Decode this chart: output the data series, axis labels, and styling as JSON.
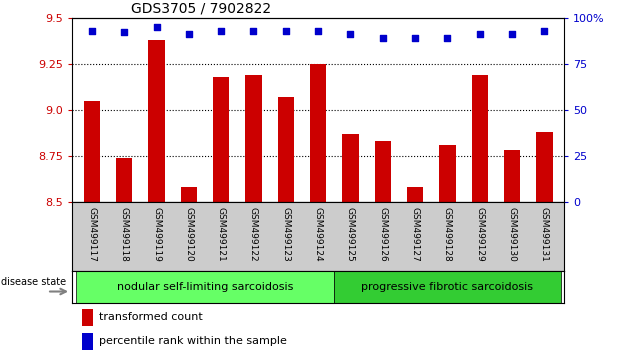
{
  "title": "GDS3705 / 7902822",
  "categories": [
    "GSM499117",
    "GSM499118",
    "GSM499119",
    "GSM499120",
    "GSM499121",
    "GSM499122",
    "GSM499123",
    "GSM499124",
    "GSM499125",
    "GSM499126",
    "GSM499127",
    "GSM499128",
    "GSM499129",
    "GSM499130",
    "GSM499131"
  ],
  "bar_values": [
    9.05,
    8.74,
    9.38,
    8.58,
    9.18,
    9.19,
    9.07,
    9.25,
    8.87,
    8.83,
    8.58,
    8.81,
    9.19,
    8.78,
    8.88
  ],
  "percentile_values": [
    93,
    92,
    95,
    91,
    93,
    93,
    93,
    93,
    91,
    89,
    89,
    89,
    91,
    91,
    93
  ],
  "bar_color": "#cc0000",
  "percentile_color": "#0000cc",
  "ylim": [
    8.5,
    9.5
  ],
  "y2lim": [
    0,
    100
  ],
  "yticks": [
    8.5,
    8.75,
    9.0,
    9.25,
    9.5
  ],
  "y2ticks": [
    0,
    25,
    50,
    75,
    100
  ],
  "gridlines": [
    8.75,
    9.0,
    9.25
  ],
  "group1_label": "nodular self-limiting sarcoidosis",
  "group2_label": "progressive fibrotic sarcoidosis",
  "group1_indices": [
    0,
    1,
    2,
    3,
    4,
    5,
    6,
    7
  ],
  "group2_indices": [
    8,
    9,
    10,
    11,
    12,
    13,
    14
  ],
  "disease_state_label": "disease state",
  "legend1_label": "transformed count",
  "legend2_label": "percentile rank within the sample",
  "background_color": "#ffffff",
  "tick_area_color": "#cccccc",
  "group1_color": "#66ff66",
  "group2_color": "#33cc33"
}
